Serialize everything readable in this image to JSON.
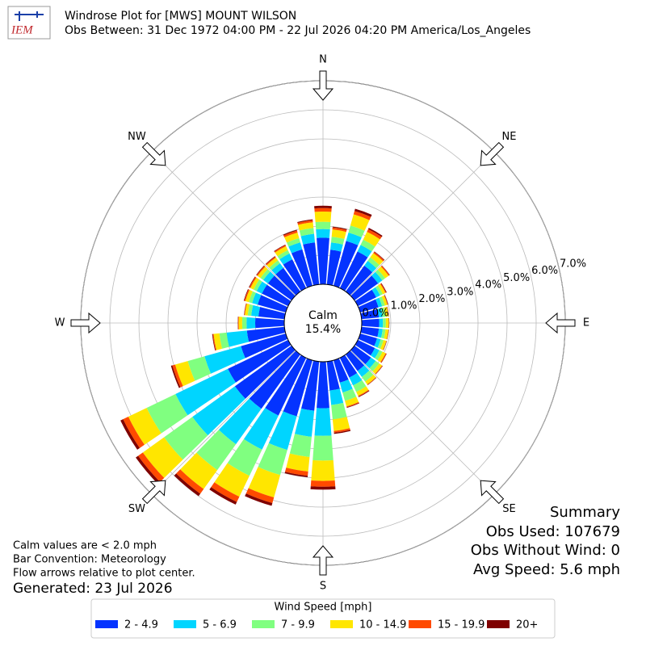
{
  "logo": "IEM",
  "chart_data": {
    "type": "windrose",
    "title": "Windrose Plot for [MWS] MOUNT WILSON",
    "subtitle": "Obs Between: 31 Dec 1972 04:00 PM - 22 Jul 2026 04:20 PM America/Los_Angeles",
    "compass": [
      "N",
      "NE",
      "E",
      "SE",
      "S",
      "SW",
      "W",
      "NW"
    ],
    "x": [
      0,
      10,
      20,
      30,
      40,
      50,
      60,
      70,
      80,
      90,
      100,
      110,
      120,
      130,
      140,
      150,
      160,
      170,
      180,
      190,
      200,
      210,
      220,
      230,
      240,
      250,
      260,
      270,
      280,
      290,
      300,
      310,
      320,
      330,
      340,
      350
    ],
    "series": [
      {
        "name": "2 - 4.9",
        "color": "#0433ff",
        "values": [
          1.6,
          1.2,
          1.6,
          1.4,
          1.1,
          1.0,
          0.7,
          0.65,
          0.6,
          0.6,
          0.6,
          0.6,
          0.65,
          0.7,
          0.7,
          0.75,
          0.8,
          1.0,
          1.6,
          1.7,
          2.0,
          2.2,
          2.3,
          2.4,
          2.3,
          1.6,
          1.3,
          1.0,
          0.9,
          1.0,
          1.0,
          1.0,
          1.0,
          1.1,
          1.3,
          1.45
        ]
      },
      {
        "name": "5 - 6.9",
        "color": "#00d5ff",
        "values": [
          0.3,
          0.25,
          0.3,
          0.25,
          0.2,
          0.18,
          0.15,
          0.13,
          0.13,
          0.13,
          0.13,
          0.13,
          0.17,
          0.2,
          0.25,
          0.3,
          0.35,
          0.5,
          0.95,
          0.9,
          1.2,
          1.3,
          1.5,
          1.8,
          2.0,
          1.3,
          0.7,
          0.3,
          0.25,
          0.2,
          0.2,
          0.2,
          0.2,
          0.22,
          0.25,
          0.3
        ]
      },
      {
        "name": "7 - 9.9",
        "color": "#80ff80",
        "values": [
          0.25,
          0.2,
          0.25,
          0.2,
          0.15,
          0.12,
          0.1,
          0.1,
          0.1,
          0.1,
          0.1,
          0.1,
          0.12,
          0.15,
          0.2,
          0.25,
          0.3,
          0.5,
          0.85,
          0.7,
          0.9,
          1.0,
          1.1,
          1.2,
          1.1,
          0.6,
          0.25,
          0.15,
          0.12,
          0.12,
          0.12,
          0.12,
          0.12,
          0.13,
          0.15,
          0.2
        ]
      },
      {
        "name": "10 - 14.9",
        "color": "#ffe600",
        "values": [
          0.35,
          0.25,
          0.4,
          0.3,
          0.18,
          0.15,
          0.1,
          0.09,
          0.1,
          0.1,
          0.1,
          0.1,
          0.12,
          0.12,
          0.12,
          0.15,
          0.2,
          0.4,
          0.7,
          0.5,
          0.8,
          0.8,
          0.8,
          0.9,
          0.7,
          0.45,
          0.2,
          0.12,
          0.1,
          0.12,
          0.12,
          0.12,
          0.12,
          0.15,
          0.2,
          0.2
        ]
      },
      {
        "name": "15 - 19.9",
        "color": "#ff4a00",
        "values": [
          0.12,
          0.07,
          0.12,
          0.1,
          0.05,
          0.04,
          0.03,
          0.02,
          0.01,
          0.01,
          0.01,
          0.01,
          0.03,
          0.02,
          0.02,
          0.03,
          0.03,
          0.06,
          0.2,
          0.15,
          0.2,
          0.2,
          0.2,
          0.2,
          0.2,
          0.1,
          0.03,
          0.02,
          0.02,
          0.04,
          0.04,
          0.04,
          0.04,
          0.04,
          0.07,
          0.07
        ]
      },
      {
        "name": "20+",
        "color": "#7f0000",
        "values": [
          0.08,
          0.03,
          0.08,
          0.05,
          0.02,
          0.01,
          0.02,
          0.01,
          0.01,
          0.01,
          0.01,
          0.01,
          0.01,
          0.01,
          0.01,
          0.02,
          0.02,
          0.04,
          0.1,
          0.05,
          0.1,
          0.1,
          0.1,
          0.1,
          0.1,
          0.05,
          0.02,
          0.01,
          0.01,
          0.02,
          0.02,
          0.02,
          0.02,
          0.02,
          0.03,
          0.03
        ]
      }
    ],
    "rlim": [
      0,
      7
    ],
    "rticks": [
      {
        "value": 0,
        "label": "0.0%"
      },
      {
        "value": 1,
        "label": "1.0%"
      },
      {
        "value": 2,
        "label": "2.0%"
      },
      {
        "value": 3,
        "label": "3.0%"
      },
      {
        "value": 4,
        "label": "4.0%"
      },
      {
        "value": 5,
        "label": "5.0%"
      },
      {
        "value": 6,
        "label": "6.0%"
      },
      {
        "value": 7,
        "label": "7.0%"
      }
    ],
    "grid": true,
    "calm": {
      "label": "Calm",
      "value": 15.4,
      "value_label": "15.4%"
    },
    "legend_title": "Wind Speed [mph]",
    "notes": [
      "Calm values are < 2.0 mph",
      "Bar Convention: Meteorology",
      "Flow arrows relative to plot center."
    ],
    "generated": "Generated: 23 Jul 2026",
    "summary": [
      "Summary",
      "Obs Used: 107679",
      "Obs Without Wind: 0",
      "Avg Speed: 5.6 mph"
    ]
  }
}
